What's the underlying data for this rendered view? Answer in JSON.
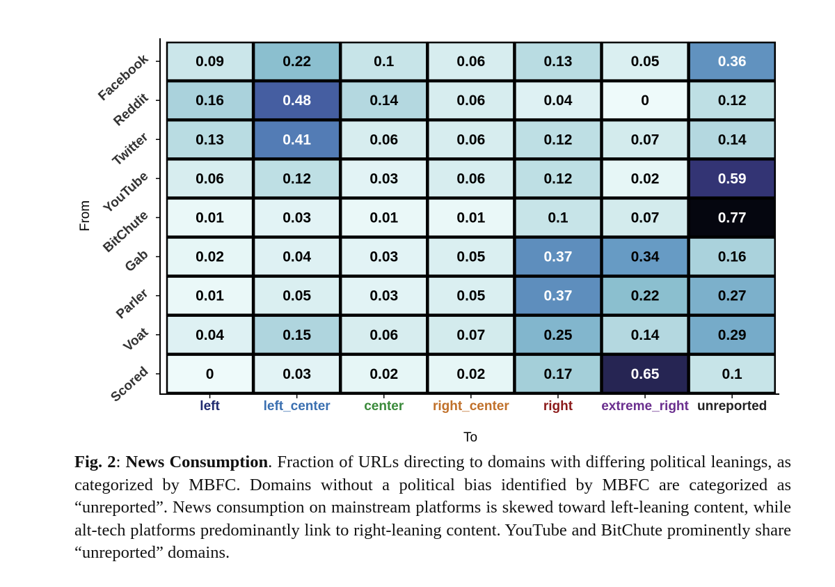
{
  "chart_data": {
    "type": "heatmap",
    "xlabel": "To",
    "ylabel": "From",
    "rows": [
      "Facebook",
      "Reddit",
      "Twitter",
      "YouTube",
      "BitChute",
      "Gab",
      "Parler",
      "Voat",
      "Scored"
    ],
    "columns": [
      "left",
      "left_center",
      "center",
      "right_center",
      "right",
      "extreme_right",
      "unreported"
    ],
    "column_label_colors": [
      "#1f2a6e",
      "#3a6fb0",
      "#3a8a3a",
      "#c0702a",
      "#8b1a1a",
      "#6a2e8e",
      "#222222"
    ],
    "values": [
      [
        0.09,
        0.22,
        0.1,
        0.06,
        0.13,
        0.05,
        0.36
      ],
      [
        0.16,
        0.48,
        0.14,
        0.06,
        0.04,
        0,
        0.12
      ],
      [
        0.13,
        0.41,
        0.06,
        0.06,
        0.12,
        0.07,
        0.14
      ],
      [
        0.06,
        0.12,
        0.03,
        0.06,
        0.12,
        0.02,
        0.59
      ],
      [
        0.01,
        0.03,
        0.01,
        0.01,
        0.1,
        0.07,
        0.77
      ],
      [
        0.02,
        0.04,
        0.03,
        0.05,
        0.37,
        0.34,
        0.16
      ],
      [
        0.01,
        0.05,
        0.03,
        0.05,
        0.37,
        0.22,
        0.27
      ],
      [
        0.04,
        0.15,
        0.06,
        0.07,
        0.25,
        0.14,
        0.29
      ],
      [
        0,
        0.03,
        0.02,
        0.02,
        0.17,
        0.65,
        0.1
      ]
    ],
    "value_labels": [
      [
        "0.09",
        "0.22",
        "0.1",
        "0.06",
        "0.13",
        "0.05",
        "0.36"
      ],
      [
        "0.16",
        "0.48",
        "0.14",
        "0.06",
        "0.04",
        "0",
        "0.12"
      ],
      [
        "0.13",
        "0.41",
        "0.06",
        "0.06",
        "0.12",
        "0.07",
        "0.14"
      ],
      [
        "0.06",
        "0.12",
        "0.03",
        "0.06",
        "0.12",
        "0.02",
        "0.59"
      ],
      [
        "0.01",
        "0.03",
        "0.01",
        "0.01",
        "0.1",
        "0.07",
        "0.77"
      ],
      [
        "0.02",
        "0.04",
        "0.03",
        "0.05",
        "0.37",
        "0.34",
        "0.16"
      ],
      [
        "0.01",
        "0.05",
        "0.03",
        "0.05",
        "0.37",
        "0.22",
        "0.27"
      ],
      [
        "0.04",
        "0.15",
        "0.06",
        "0.07",
        "0.25",
        "0.14",
        "0.29"
      ],
      [
        "0",
        "0.03",
        "0.02",
        "0.02",
        "0.17",
        "0.65",
        "0.1"
      ]
    ],
    "colorscale": [
      "#eefafa",
      "#c3e2e6",
      "#8bbfcf",
      "#6a9fc6",
      "#4a6fae",
      "#3c3f8a",
      "#24224e",
      "#05060f"
    ],
    "grid": false
  },
  "caption": {
    "label": "Fig. 2",
    "title": "News Consumption",
    "text": "Fraction of URLs directing to domains with differing political leanings, as categorized by MBFC. Domains without a political bias identified by MBFC are categorized as “unreported”. News consumption on mainstream platforms is skewed toward left-leaning content, while alt-tech platforms predominantly link to right-leaning content. YouTube and BitChute prominently share “unreported” domains."
  }
}
